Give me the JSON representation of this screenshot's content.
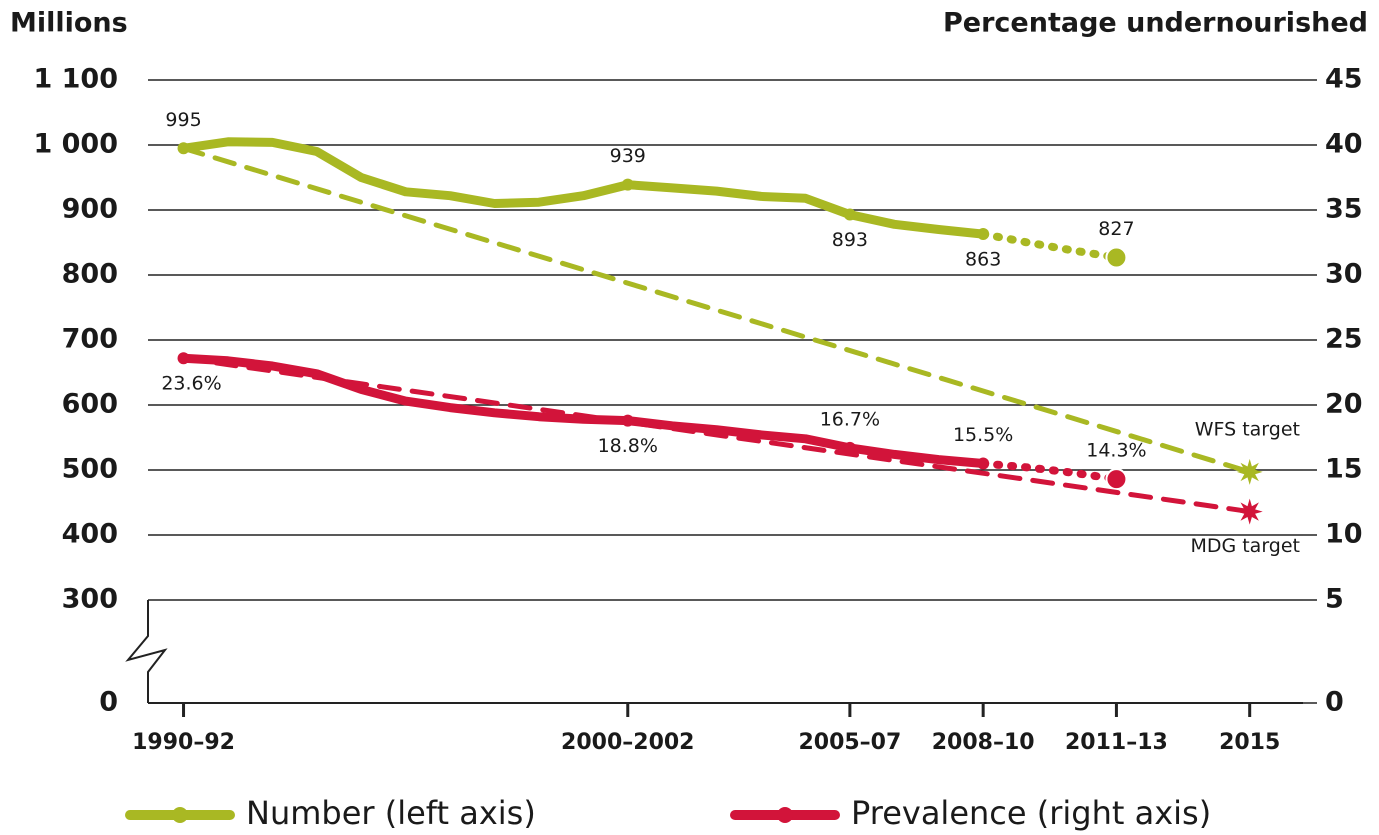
{
  "chart_data": {
    "type": "line",
    "ylabel": "Millions",
    "y2label": "Percentage undernourished",
    "xlim": [
      1990.2,
      2016.2
    ],
    "xticks": [
      {
        "value": 1991,
        "label": "1990–92"
      },
      {
        "value": 2001,
        "label": "2000–2002"
      },
      {
        "value": 2006,
        "label": "2005–07"
      },
      {
        "value": 2009,
        "label": "2008–10"
      },
      {
        "value": 2012,
        "label": "2011–13"
      },
      2015
    ],
    "ylim": [
      0,
      1100
    ],
    "yticks": [
      0,
      300,
      400,
      500,
      600,
      700,
      800,
      900,
      {
        "value": 1000,
        "label": "1 000"
      },
      {
        "value": 1100,
        "label": "1 100"
      }
    ],
    "y2lim": [
      0,
      45
    ],
    "y2ticks": [
      0,
      5,
      10,
      15,
      20,
      25,
      30,
      35,
      40,
      45
    ],
    "axis_break": true,
    "grid": true,
    "legend": "bottom",
    "series": [
      {
        "name": "Number (left axis)",
        "color": "#a9b823",
        "style": "solid",
        "x": [
          1991,
          1992,
          1993,
          1994,
          1995,
          1996,
          1997,
          1998,
          1999,
          2000,
          2001,
          2002,
          2003,
          2004,
          2005,
          2006,
          2007,
          2008,
          2009
        ],
        "values": [
          995,
          1005,
          1004,
          990,
          950,
          928,
          922,
          910,
          912,
          922,
          939,
          934,
          929,
          921,
          918,
          893,
          878,
          870,
          863
        ],
        "value_labels": [
          "995",
          null,
          null,
          null,
          null,
          null,
          null,
          null,
          null,
          null,
          "939",
          null,
          null,
          null,
          null,
          "893",
          null,
          null,
          "863"
        ]
      },
      {
        "color": "#a9b823",
        "style": "dotted",
        "x": [
          2009,
          2010,
          2011,
          2012
        ],
        "values": [
          863,
          850,
          838,
          827
        ],
        "value_labels": [
          null,
          null,
          null,
          "827"
        ]
      },
      {
        "label": "WFS target",
        "color": "#a9b823",
        "style": "dashed",
        "marker": "star",
        "x": [
          1991,
          2015
        ],
        "values": [
          995,
          497
        ]
      },
      {
        "name": "Prevalence (right axis)",
        "color": "#d2143a",
        "style": "solid",
        "axis": "y2",
        "x": [
          1991,
          1992,
          1993,
          1994,
          1995,
          1996,
          1997,
          1998,
          1999,
          2000,
          2001,
          2002,
          2003,
          2004,
          2005,
          2006,
          2007,
          2008,
          2009
        ],
        "values": [
          23.6,
          23.4,
          23.0,
          22.4,
          21.2,
          20.3,
          19.8,
          19.4,
          19.1,
          18.9,
          18.8,
          18.4,
          18.1,
          17.7,
          17.4,
          16.7,
          16.2,
          15.8,
          15.5
        ],
        "value_labels": [
          "23.6%",
          null,
          null,
          null,
          null,
          null,
          null,
          null,
          null,
          null,
          "18.8%",
          null,
          null,
          null,
          null,
          "16.7%",
          null,
          null,
          "15.5%"
        ]
      },
      {
        "color": "#d2143a",
        "style": "dotted",
        "axis": "y2",
        "x": [
          2009,
          2010,
          2011,
          2012
        ],
        "values": [
          15.5,
          15.2,
          14.8,
          14.3
        ],
        "value_labels": [
          null,
          null,
          null,
          "14.3%"
        ]
      },
      {
        "label": "MDG target",
        "color": "#d2143a",
        "style": "dashed",
        "marker": "star",
        "axis": "y2",
        "x": [
          1991,
          2015
        ],
        "values": [
          23.6,
          11.8
        ]
      }
    ]
  }
}
